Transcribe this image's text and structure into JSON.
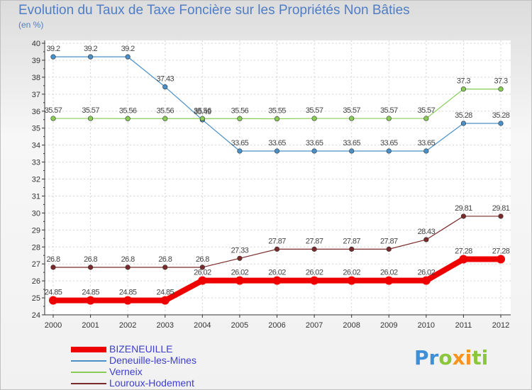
{
  "chart_data": {
    "type": "line",
    "title": "Evolution du Taux de Taxe Foncière sur les Propriétés Non Bâties",
    "ylabel": "(en %)",
    "ylim": [
      24,
      40
    ],
    "categories": [
      "2000",
      "2001",
      "2002",
      "2003",
      "2004",
      "2005",
      "2006",
      "2007",
      "2008",
      "2009",
      "2010",
      "2011",
      "2012"
    ],
    "yticks": [
      "24",
      "25",
      "26",
      "27",
      "28",
      "29",
      "30",
      "31",
      "32",
      "33",
      "34",
      "35",
      "36",
      "37",
      "38",
      "39",
      "40"
    ],
    "series": [
      {
        "name": "BIZENEUILLE",
        "color": "#ee0000",
        "values": [
          24.85,
          24.85,
          24.85,
          24.85,
          26.02,
          26.02,
          26.02,
          26.02,
          26.02,
          26.02,
          26.02,
          27.28,
          27.28
        ],
        "labels": [
          "24.85",
          "24.85",
          "24.85",
          "24.85",
          "26.02",
          "26.02",
          "26.02",
          "26.02",
          "26.02",
          "26.02",
          "26.02",
          "27.28",
          "27.28"
        ]
      },
      {
        "name": "Deneuille-les-Mines",
        "color": "#4a90c8",
        "values": [
          39.2,
          39.2,
          39.2,
          37.43,
          35.49,
          33.65,
          33.65,
          33.65,
          33.65,
          33.65,
          33.65,
          35.28,
          35.28
        ],
        "labels": [
          "39.2",
          "39.2",
          "39.2",
          "37.43",
          "35.49",
          "33.65",
          "33.65",
          "33.65",
          "33.65",
          "33.65",
          "33.65",
          "35.28",
          "35.28"
        ]
      },
      {
        "name": "Verneix",
        "color": "#88cc55",
        "values": [
          35.57,
          35.57,
          35.56,
          35.56,
          35.56,
          35.56,
          35.55,
          35.57,
          35.57,
          35.57,
          35.57,
          37.3,
          37.3
        ],
        "labels": [
          "35.57",
          "35.57",
          "35.56",
          "35.56",
          "35.56",
          "35.56",
          "35.55",
          "35.57",
          "35.57",
          "35.57",
          "35.57",
          "37.3",
          "37.3"
        ]
      },
      {
        "name": "Louroux-Hodement",
        "color": "#7a2a2a",
        "values": [
          26.8,
          26.8,
          26.8,
          26.8,
          26.8,
          27.33,
          27.87,
          27.87,
          27.87,
          27.87,
          28.43,
          29.81,
          29.81
        ],
        "labels": [
          "26.8",
          "26.8",
          "26.8",
          "26.8",
          "26.8",
          "27.33",
          "27.87",
          "27.87",
          "27.87",
          "27.87",
          "28.43",
          "29.81",
          "29.81"
        ]
      }
    ]
  },
  "logo": {
    "letters": [
      "P",
      "r",
      "o",
      "x",
      "i",
      "t",
      "i"
    ],
    "colors": [
      "#3f8fd8",
      "#3f8fd8",
      "#8cc63f",
      "#f7941d",
      "#f7941d",
      "#8cc63f",
      "#8cc63f"
    ]
  }
}
